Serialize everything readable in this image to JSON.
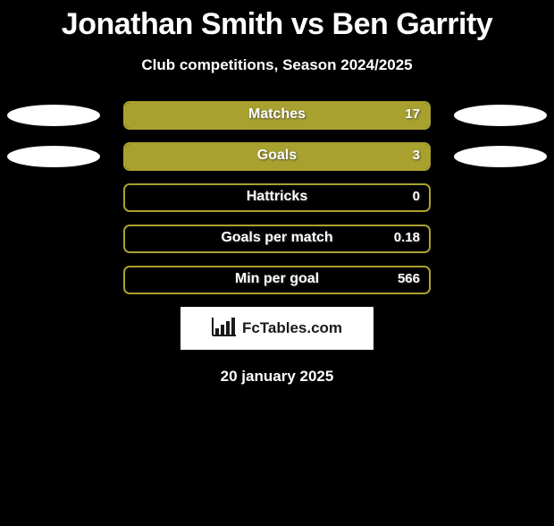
{
  "title": "Jonathan Smith vs Ben Garrity",
  "subtitle": "Club competitions, Season 2024/2025",
  "date_text": "20 january 2025",
  "footer_brand": "FcTables.com",
  "bar_colors": {
    "border": "#a9a12f",
    "fill": "#a9a12f"
  },
  "background_color": "#000000",
  "ellipse_color": "#ffffff",
  "rows": [
    {
      "label": "Matches",
      "value": "17",
      "fill_pct": 100,
      "show_left_ellipse": true,
      "show_right_ellipse": true
    },
    {
      "label": "Goals",
      "value": "3",
      "fill_pct": 100,
      "show_left_ellipse": true,
      "show_right_ellipse": true
    },
    {
      "label": "Hattricks",
      "value": "0",
      "fill_pct": 0,
      "show_left_ellipse": false,
      "show_right_ellipse": false
    },
    {
      "label": "Goals per match",
      "value": "0.18",
      "fill_pct": 0,
      "show_left_ellipse": false,
      "show_right_ellipse": false
    },
    {
      "label": "Min per goal",
      "value": "566",
      "fill_pct": 0,
      "show_left_ellipse": false,
      "show_right_ellipse": false
    }
  ]
}
